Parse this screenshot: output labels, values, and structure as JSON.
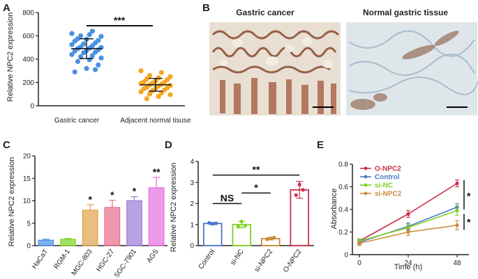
{
  "panels": {
    "A": {
      "label": "A",
      "chart_data": {
        "type": "scatter",
        "ylabel": "Relative NPC2 expression",
        "ylim": [
          0,
          800
        ],
        "yticks": [
          0,
          200,
          400,
          600,
          800
        ],
        "categories": [
          "Gastric cancer",
          "Adjacent normal tisuse"
        ],
        "series": [
          {
            "color": "#4a90e2",
            "mean": 490,
            "sd": 85,
            "values": [
              620,
              640,
              600,
              595,
              610,
              575,
              560,
              570,
              555,
              540,
              530,
              525,
              515,
              505,
              500,
              495,
              490,
              480,
              475,
              470,
              460,
              455,
              440,
              430,
              420,
              410,
              395,
              380,
              350,
              320,
              290,
              310
            ]
          },
          {
            "color": "#f5a623",
            "mean": 180,
            "sd": 55,
            "values": [
              300,
              285,
              260,
              250,
              240,
              230,
              225,
              215,
              205,
              200,
              195,
              190,
              185,
              180,
              175,
              170,
              160,
              155,
              150,
              145,
              135,
              130,
              120,
              110,
              100,
              95,
              80,
              60
            ]
          }
        ],
        "significance": "***"
      }
    },
    "B": {
      "label": "B",
      "titles": [
        "Gastric cancer",
        "Normal gastric tissue"
      ]
    },
    "C": {
      "label": "C",
      "chart_data": {
        "type": "bar",
        "ylabel": "Relative NPC2 expression",
        "ylim": [
          0,
          20
        ],
        "yticks": [
          0,
          5,
          10,
          15,
          20
        ],
        "categories": [
          "HaCaT",
          "RGM-1",
          "MGC-803",
          "HGC-27",
          "SGC-7901",
          "AGS"
        ],
        "values": [
          1.2,
          1.4,
          7.9,
          8.5,
          10.0,
          12.9
        ],
        "errors": [
          0.2,
          0.2,
          1.2,
          1.6,
          0.9,
          2.3
        ],
        "colors": [
          "#4a90e2",
          "#7ed321",
          "#e0a24a",
          "#e86c8a",
          "#9b7bd4",
          "#e36fe0"
        ],
        "significance": [
          "",
          "",
          "*",
          "*",
          "*",
          "**"
        ]
      }
    },
    "D": {
      "label": "D",
      "chart_data": {
        "type": "bar",
        "ylabel": "Relative NPC2 expression",
        "ylim": [
          0,
          4
        ],
        "yticks": [
          0,
          1,
          2,
          3,
          4
        ],
        "categories": [
          "Control",
          "si-NC",
          "si-NPC2",
          "O-NPC2"
        ],
        "values": [
          1.05,
          1.0,
          0.33,
          2.65
        ],
        "errors": [
          0.05,
          0.15,
          0.06,
          0.4
        ],
        "points": [
          [
            1.08,
            1.03,
            1.06
          ],
          [
            0.9,
            1.15,
            0.95
          ],
          [
            0.3,
            0.35,
            0.38
          ],
          [
            2.4,
            2.9,
            2.65
          ]
        ],
        "colors": [
          "#4a78c8",
          "#7ed321",
          "#c88c3c",
          "#c8324a"
        ],
        "comparisons": [
          {
            "from": 0,
            "to": 1,
            "label": "NS"
          },
          {
            "from": 1,
            "to": 2,
            "label": "*"
          },
          {
            "from": 0,
            "to": 3,
            "label": "**"
          }
        ]
      }
    },
    "E": {
      "label": "E",
      "chart_data": {
        "type": "line",
        "xlabel": "Time (h)",
        "ylabel": "Absorbance",
        "x": [
          0,
          24,
          48
        ],
        "ylim": [
          0,
          0.8
        ],
        "yticks": [
          0.0,
          0.2,
          0.4,
          0.6,
          0.8
        ],
        "series": [
          {
            "name": "O-NPC2",
            "color": "#c8324a",
            "values": [
              0.12,
              0.36,
              0.63
            ],
            "errors": [
              0.02,
              0.03,
              0.03
            ]
          },
          {
            "name": "Control",
            "color": "#4a78c8",
            "values": [
              0.11,
              0.25,
              0.42
            ],
            "errors": [
              0.02,
              0.03,
              0.03
            ]
          },
          {
            "name": "si-NC",
            "color": "#7ed321",
            "values": [
              0.12,
              0.24,
              0.39
            ],
            "errors": [
              0.02,
              0.03,
              0.04
            ]
          },
          {
            "name": "si-NPC2",
            "color": "#c88c3c",
            "values": [
              0.1,
              0.2,
              0.26
            ],
            "errors": [
              0.02,
              0.03,
              0.04
            ]
          }
        ],
        "significance": [
          "*",
          "*"
        ]
      }
    }
  }
}
